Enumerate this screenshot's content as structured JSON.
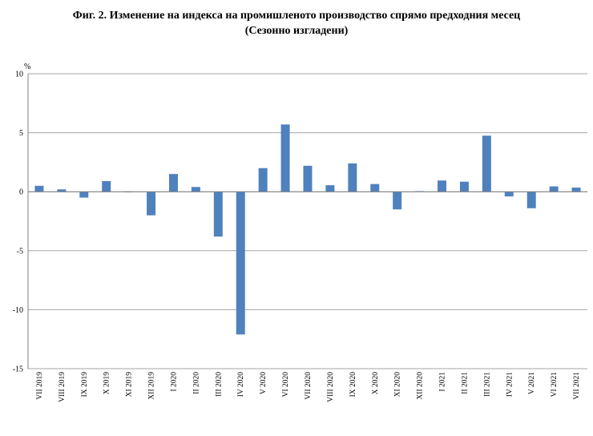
{
  "title_line1": "Фиг. 2. Изменение на индекса на промишленото производство спрямо предходния месец",
  "title_line2": "(Сезонно изгладени)",
  "chart_data": {
    "type": "bar",
    "title": "Фиг. 2. Изменение на индекса на промишленото производство спрямо предходния месец (Сезонно изгладени)",
    "ylabel": "%",
    "xlabel": "",
    "ylim": [
      -15,
      10
    ],
    "yticks": [
      10,
      5,
      0,
      -5,
      -10,
      -15
    ],
    "grid": true,
    "bar_color": "#4f81bd",
    "categories": [
      "VII 2019",
      "VIII 2019",
      "IX 2019",
      "X 2019",
      "XI 2019",
      "XII 2019",
      "I 2020",
      "II 2020",
      "III 2020",
      "IV 2020",
      "V 2020",
      "VI 2020",
      "VII 2020",
      "VIII 2020",
      "IX 2020",
      "X 2020",
      "XI 2020",
      "XII 2020",
      "I 2021",
      "II 2021",
      "III 2021",
      "IV 2021",
      "V 2021",
      "VI 2021",
      "VII 2021"
    ],
    "values": [
      0.5,
      0.2,
      -0.5,
      0.9,
      -0.05,
      -2.0,
      1.5,
      0.4,
      -3.8,
      -12.1,
      2.0,
      5.7,
      2.2,
      0.55,
      2.4,
      0.65,
      -1.5,
      0.05,
      0.95,
      0.85,
      4.75,
      -0.4,
      -1.4,
      0.45,
      0.35
    ]
  }
}
